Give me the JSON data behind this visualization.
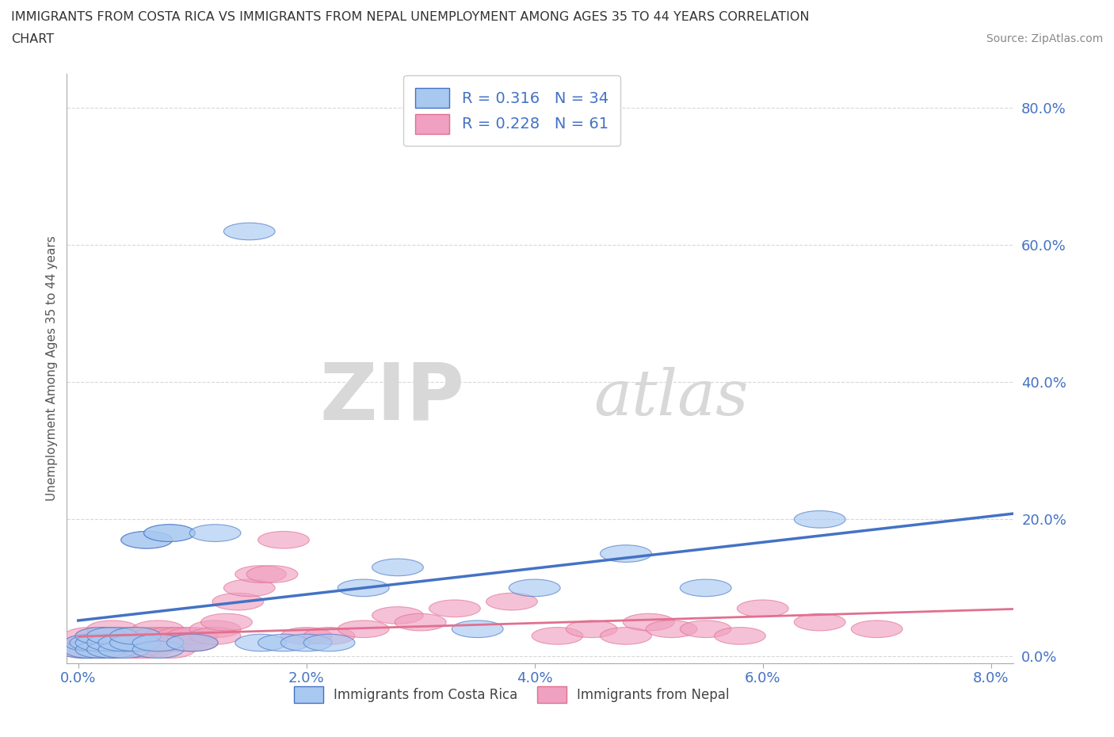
{
  "title_line1": "IMMIGRANTS FROM COSTA RICA VS IMMIGRANTS FROM NEPAL UNEMPLOYMENT AMONG AGES 35 TO 44 YEARS CORRELATION",
  "title_line2": "CHART",
  "source_text": "Source: ZipAtlas.com",
  "ylabel": "Unemployment Among Ages 35 to 44 years",
  "xlim": [
    -0.001,
    0.082
  ],
  "ylim": [
    -0.01,
    0.85
  ],
  "xticks": [
    0.0,
    0.02,
    0.04,
    0.06,
    0.08
  ],
  "xtick_labels": [
    "0.0%",
    "2.0%",
    "4.0%",
    "6.0%",
    "8.0%"
  ],
  "yticks": [
    0.0,
    0.2,
    0.4,
    0.6,
    0.8
  ],
  "ytick_labels": [
    "0.0%",
    "20.0%",
    "40.0%",
    "60.0%",
    "80.0%"
  ],
  "color_cr": "#a8c8f0",
  "color_nepal": "#f0a0c0",
  "line_color_cr": "#4472c4",
  "line_color_nepal": "#e07090",
  "r_cr": 0.316,
  "n_cr": 34,
  "r_nepal": 0.228,
  "n_nepal": 61,
  "watermark_zip": "ZIP",
  "watermark_atlas": "atlas",
  "legend_label_cr": "Immigrants from Costa Rica",
  "legend_label_nepal": "Immigrants from Nepal",
  "cr_x": [
    0.0005,
    0.001,
    0.001,
    0.0015,
    0.002,
    0.002,
    0.002,
    0.003,
    0.003,
    0.003,
    0.004,
    0.004,
    0.005,
    0.005,
    0.006,
    0.006,
    0.007,
    0.007,
    0.008,
    0.008,
    0.01,
    0.012,
    0.015,
    0.016,
    0.018,
    0.02,
    0.022,
    0.025,
    0.028,
    0.035,
    0.04,
    0.048,
    0.055,
    0.065
  ],
  "cr_y": [
    0.01,
    0.01,
    0.02,
    0.02,
    0.01,
    0.02,
    0.03,
    0.01,
    0.02,
    0.03,
    0.01,
    0.02,
    0.02,
    0.03,
    0.17,
    0.17,
    0.01,
    0.02,
    0.18,
    0.18,
    0.02,
    0.18,
    0.62,
    0.02,
    0.02,
    0.02,
    0.02,
    0.1,
    0.13,
    0.04,
    0.1,
    0.15,
    0.1,
    0.2
  ],
  "nepal_x": [
    0.0005,
    0.001,
    0.001,
    0.001,
    0.002,
    0.002,
    0.002,
    0.002,
    0.003,
    0.003,
    0.003,
    0.003,
    0.003,
    0.004,
    0.004,
    0.004,
    0.004,
    0.005,
    0.005,
    0.005,
    0.005,
    0.006,
    0.006,
    0.006,
    0.007,
    0.007,
    0.007,
    0.007,
    0.008,
    0.008,
    0.008,
    0.009,
    0.009,
    0.01,
    0.01,
    0.01,
    0.012,
    0.012,
    0.013,
    0.014,
    0.015,
    0.016,
    0.017,
    0.018,
    0.02,
    0.022,
    0.025,
    0.028,
    0.03,
    0.033,
    0.038,
    0.042,
    0.045,
    0.048,
    0.05,
    0.052,
    0.055,
    0.058,
    0.06,
    0.065,
    0.07
  ],
  "nepal_y": [
    0.01,
    0.01,
    0.02,
    0.03,
    0.02,
    0.03,
    0.01,
    0.02,
    0.01,
    0.03,
    0.02,
    0.04,
    0.02,
    0.02,
    0.03,
    0.02,
    0.02,
    0.03,
    0.02,
    0.01,
    0.02,
    0.02,
    0.03,
    0.01,
    0.04,
    0.02,
    0.03,
    0.02,
    0.03,
    0.01,
    0.02,
    0.02,
    0.03,
    0.02,
    0.03,
    0.02,
    0.04,
    0.03,
    0.05,
    0.08,
    0.1,
    0.12,
    0.12,
    0.17,
    0.03,
    0.03,
    0.04,
    0.06,
    0.05,
    0.07,
    0.08,
    0.03,
    0.04,
    0.03,
    0.05,
    0.04,
    0.04,
    0.03,
    0.07,
    0.05,
    0.04
  ],
  "background_color": "#ffffff",
  "grid_color": "#d8d8d8"
}
